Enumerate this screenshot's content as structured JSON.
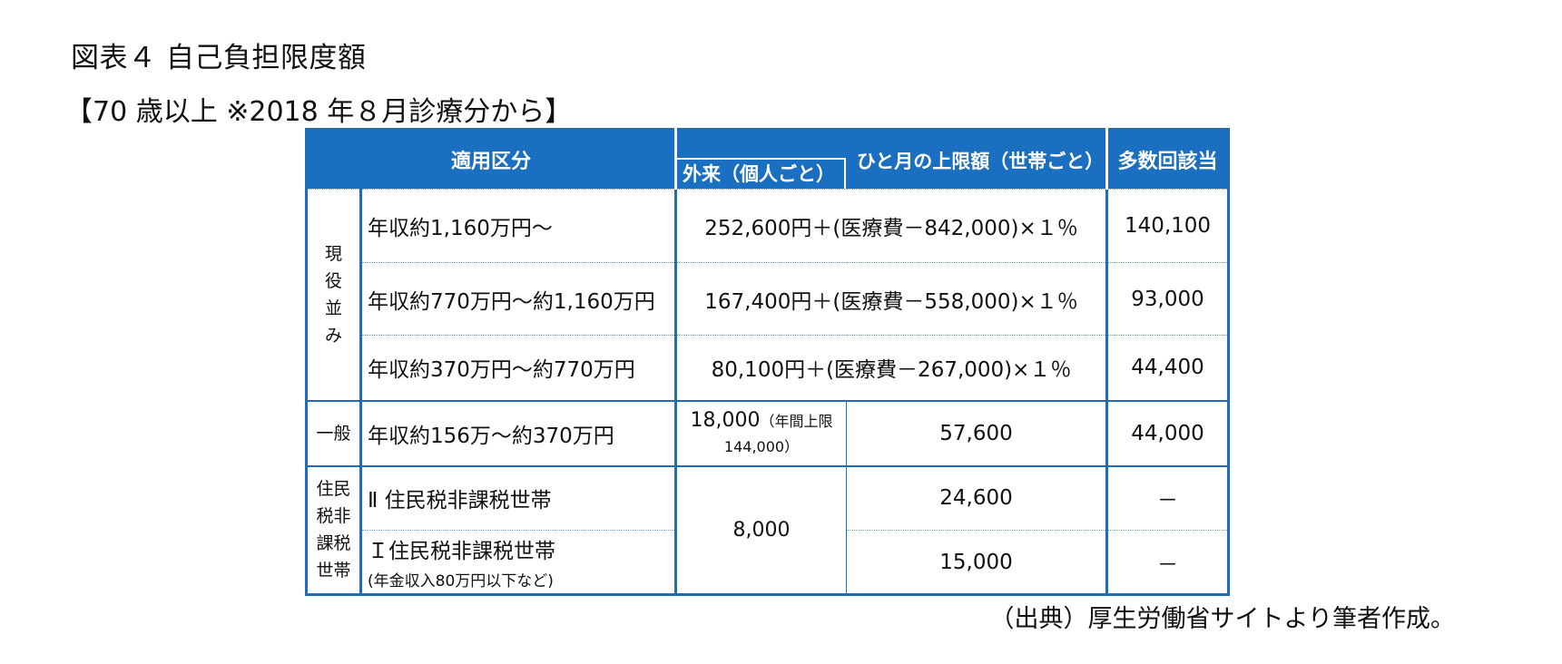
{
  "title": "図表４ 自己負担限度額",
  "subtitle": "【70 歳以上 ※2018 年８月診療分から】",
  "table": {
    "headers": {
      "category": "適用区分",
      "monthly_limit": "ひと月の上限額（世帯ごと）",
      "outpatient": "外来（個人ごと）",
      "multiple": "多数回該当"
    },
    "groups": {
      "genekinami": [
        "現",
        "役",
        "並",
        "み"
      ],
      "ippan": "一般",
      "hikazei": [
        "住民",
        "税非",
        "課税",
        "世帯"
      ]
    },
    "rows": [
      {
        "label": "年収約1,160万円～",
        "formula": "252,600円＋(医療費－842,000)×１％",
        "multiple": "140,100"
      },
      {
        "label": "年収約770万円～約1,160万円",
        "formula": "167,400円＋(医療費－558,000)×１％",
        "multiple": "93,000"
      },
      {
        "label": "年収約370万円～約770万円",
        "formula": "80,100円＋(医療費－267,000)×１％",
        "multiple": "44,400"
      },
      {
        "label": "年収約156万～約370万円",
        "outpatient": "18,000",
        "outpatient_note": "（年間上限",
        "outpatient_note2": "144,000）",
        "limit": "57,600",
        "multiple": "44,000"
      },
      {
        "label": "Ⅱ 住民税非課税世帯",
        "limit": "24,600",
        "multiple": "－"
      },
      {
        "label": "Ｉ住民税非課税世帯",
        "label_note": "(年金収入80万円以下など)",
        "limit": "15,000",
        "multiple": "－"
      }
    ],
    "hikazei_outpatient": "8,000"
  },
  "source": "（出典）厚生労働省サイトより筆者作成。",
  "colors": {
    "header_bg": "#1a6fc1",
    "border": "#1f6db7"
  }
}
